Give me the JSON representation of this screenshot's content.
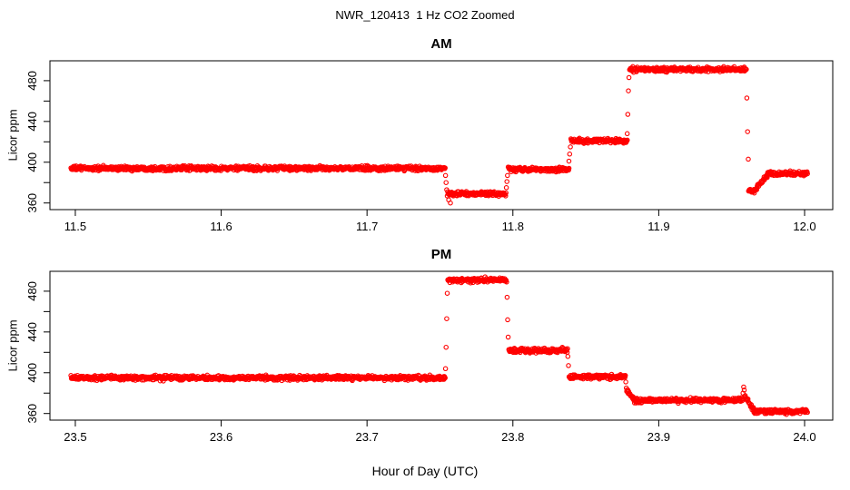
{
  "title": "NWR_120413  1 Hz CO2 Zoomed",
  "xlabel": "Hour of Day (UTC)",
  "point_color": "#FF0000",
  "chart_data": [
    {
      "type": "scatter",
      "title": "AM",
      "ylabel": "Licor ppm",
      "marker": "open-circle",
      "grid": false,
      "legend": null,
      "sample_interval_hours": 0.000278,
      "x_domain": [
        11.4826,
        12.0193
      ],
      "y_domain": [
        353.5,
        499.5
      ],
      "x_ticks": [
        {
          "value": 11.5,
          "label": "11.5"
        },
        {
          "value": 11.6,
          "label": "11.6"
        },
        {
          "value": 11.7,
          "label": "11.7"
        },
        {
          "value": 11.8,
          "label": "11.8"
        },
        {
          "value": 11.9,
          "label": "11.9"
        },
        {
          "value": 12.0,
          "label": "12.0"
        }
      ],
      "y_ticks": [
        {
          "value": 360,
          "label": "360"
        },
        {
          "value": 380,
          "label": ""
        },
        {
          "value": 400,
          "label": "400"
        },
        {
          "value": 420,
          "label": ""
        },
        {
          "value": 440,
          "label": "440"
        },
        {
          "value": 460,
          "label": ""
        },
        {
          "value": 480,
          "label": "480"
        }
      ],
      "segments": [
        {
          "t0": 11.497,
          "t1": 11.7535,
          "y": 394
        },
        {
          "t0": 11.755,
          "t1": 11.7952,
          "y": 369
        },
        {
          "t0": 11.7968,
          "t1": 11.8385,
          "y": 393
        },
        {
          "t0": 11.8398,
          "t1": 11.8785,
          "y": 421
        },
        {
          "t0": 11.88,
          "t1": 11.96,
          "y": 491
        },
        {
          "t0": 11.9616,
          "t1": 11.9672,
          "y": 372,
          "noise": 2.6
        },
        {
          "t0": 11.9672,
          "t1": 11.9745,
          "y0": 376,
          "y1": 386
        },
        {
          "t0": 11.9745,
          "t1": 12.002,
          "y": 389
        }
      ],
      "transition_points": [
        [
          11.7538,
          387
        ],
        [
          11.7542,
          380
        ],
        [
          11.7546,
          373
        ],
        [
          11.756,
          363
        ],
        [
          11.7572,
          360
        ],
        [
          11.7955,
          375
        ],
        [
          11.7959,
          381
        ],
        [
          11.7963,
          387
        ],
        [
          11.8384,
          401
        ],
        [
          11.8389,
          408
        ],
        [
          11.8394,
          415
        ],
        [
          11.8784,
          428
        ],
        [
          11.8788,
          447
        ],
        [
          11.8792,
          470
        ],
        [
          11.8796,
          483
        ],
        [
          11.9604,
          463
        ],
        [
          11.9609,
          430
        ],
        [
          11.9614,
          403
        ]
      ]
    },
    {
      "type": "scatter",
      "title": "PM",
      "ylabel": "Licor ppm",
      "marker": "open-circle",
      "grid": false,
      "legend": null,
      "sample_interval_hours": 0.000278,
      "x_domain": [
        23.4826,
        24.0193
      ],
      "y_domain": [
        353.5,
        499.5
      ],
      "x_ticks": [
        {
          "value": 23.5,
          "label": "23.5"
        },
        {
          "value": 23.6,
          "label": "23.6"
        },
        {
          "value": 23.7,
          "label": "23.7"
        },
        {
          "value": 23.8,
          "label": "23.8"
        },
        {
          "value": 23.9,
          "label": "23.9"
        },
        {
          "value": 24.0,
          "label": "24.0"
        }
      ],
      "y_ticks": [
        {
          "value": 360,
          "label": "360"
        },
        {
          "value": 380,
          "label": ""
        },
        {
          "value": 400,
          "label": "400"
        },
        {
          "value": 420,
          "label": ""
        },
        {
          "value": 440,
          "label": "440"
        },
        {
          "value": 460,
          "label": ""
        },
        {
          "value": 480,
          "label": "480"
        }
      ],
      "segments": [
        {
          "t0": 23.497,
          "t1": 23.7535,
          "y": 395
        },
        {
          "t0": 23.7554,
          "t1": 23.7958,
          "y": 491
        },
        {
          "t0": 23.7972,
          "t1": 23.8375,
          "y": 422
        },
        {
          "t0": 23.8385,
          "t1": 23.8772,
          "y": 396
        },
        {
          "t0": 23.878,
          "t1": 23.8828,
          "y0": 382,
          "y1": 375
        },
        {
          "t0": 23.8828,
          "t1": 23.9575,
          "y": 373
        },
        {
          "t0": 23.959,
          "t1": 23.965,
          "y0": 377,
          "y1": 364
        },
        {
          "t0": 23.965,
          "t1": 24.002,
          "y": 362
        }
      ],
      "transition_points": [
        [
          23.7538,
          404
        ],
        [
          23.7542,
          425
        ],
        [
          23.7546,
          453
        ],
        [
          23.755,
          478
        ],
        [
          23.796,
          474
        ],
        [
          23.7964,
          452
        ],
        [
          23.7968,
          435
        ],
        [
          23.8377,
          416
        ],
        [
          23.8381,
          407
        ],
        [
          23.8774,
          391
        ],
        [
          23.8778,
          385
        ],
        [
          23.9578,
          380
        ],
        [
          23.9582,
          386
        ],
        [
          23.9586,
          383
        ]
      ]
    }
  ]
}
